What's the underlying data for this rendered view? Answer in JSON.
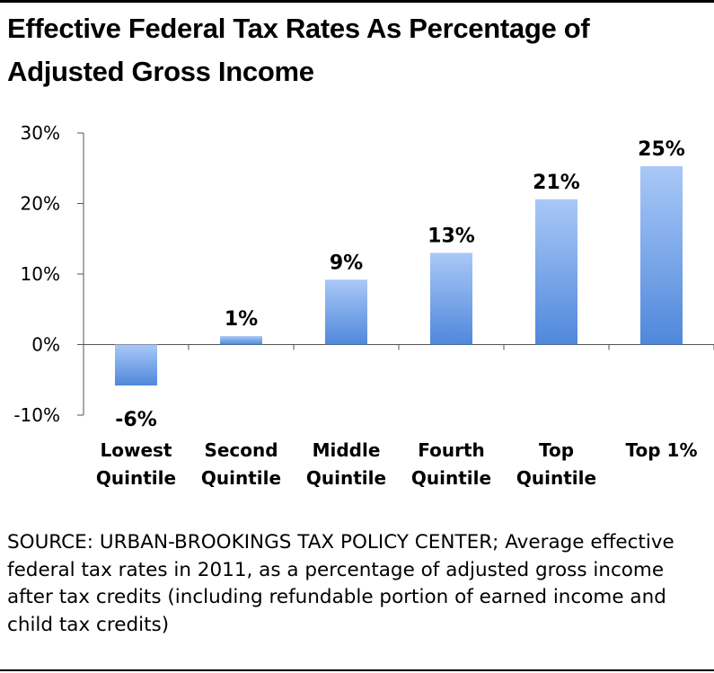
{
  "title": "Effective Federal Tax Rates As Percentage of Adjusted Gross Income",
  "source_note": "SOURCE: URBAN-BROOKINGS TAX POLICY CENTER; Average effective federal tax rates in 2011, as a percentage of adjusted gross income after tax credits (including refundable portion of earned income and child tax credits)",
  "colors": {
    "bar_top": "#a9c8f7",
    "bar_bottom": "#4f88db",
    "axis": "#555555"
  },
  "chart_data": {
    "type": "bar",
    "title": "Effective Federal Tax Rates As Percentage of Adjusted Gross Income",
    "xlabel": "",
    "ylabel": "",
    "categories": [
      [
        "Lowest",
        "Quintile"
      ],
      [
        "Second",
        "Quintile"
      ],
      [
        "Middle",
        "Quintile"
      ],
      [
        "Fourth",
        "Quintile"
      ],
      [
        "Top",
        "Quintile"
      ],
      [
        "Top 1%"
      ]
    ],
    "values": [
      -5.8,
      1.2,
      9.2,
      13.0,
      20.6,
      25.3
    ],
    "data_labels": [
      "-6%",
      "1%",
      "9%",
      "13%",
      "21%",
      "25%"
    ],
    "ylim": [
      -10,
      30
    ],
    "yticks": [
      30,
      20,
      10,
      0,
      -10
    ],
    "ytick_labels": [
      "30%",
      "20%",
      "10%",
      "0%",
      "-10%"
    ],
    "grid": false,
    "legend": "none"
  }
}
